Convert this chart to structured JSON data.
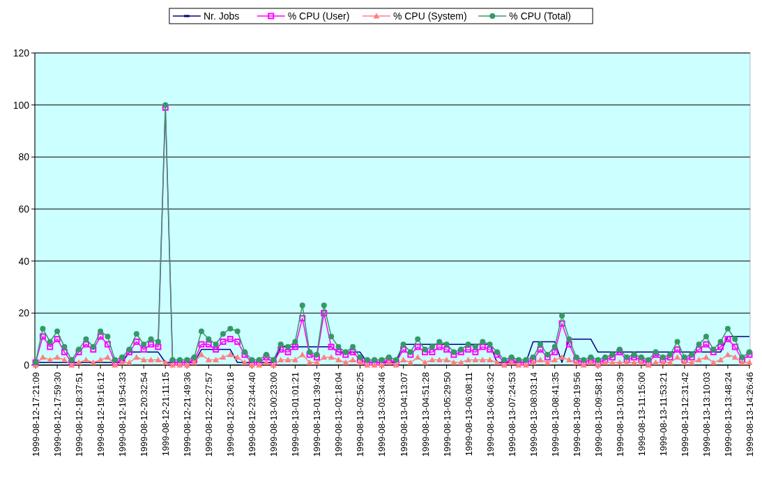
{
  "chart_data": {
    "type": "line",
    "categories": [
      "1999-08-12-17:21:09",
      null,
      null,
      "1999-08-12-17:59:30",
      null,
      null,
      "1999-08-12-18:37:51",
      null,
      null,
      "1999-08-12-19:16:12",
      null,
      null,
      "1999-08-12-19:54:33",
      null,
      null,
      "1999-08-12-20:32:54",
      null,
      null,
      "1999-08-12-21:11:15",
      null,
      null,
      "1999-08-12-21:49:36",
      null,
      null,
      "1999-08-12-22:27:57",
      null,
      null,
      "1999-08-12-23:06:18",
      null,
      null,
      "1999-08-12-23:44:40",
      null,
      null,
      "1999-08-13-00:23:00",
      null,
      null,
      "1999-08-13-01:01:21",
      null,
      null,
      "1999-08-13-01:39:43",
      null,
      null,
      "1999-08-13-02:18:04",
      null,
      null,
      "1999-08-13-02:56:25",
      null,
      null,
      "1999-08-13-03:34:46",
      null,
      null,
      "1999-08-13-04:13:07",
      null,
      null,
      "1999-08-13-04:51:28",
      null,
      null,
      "1999-08-13-05:29:50",
      null,
      null,
      "1999-08-13-06:08:11",
      null,
      null,
      "1999-08-13-06:46:32",
      null,
      null,
      "1999-08-13-07:24:53",
      null,
      null,
      "1999-08-13-08:03:14",
      null,
      null,
      "1999-08-13-08:41:35",
      null,
      null,
      "1999-08-13-09:19:56",
      null,
      null,
      "1999-08-13-09:58:18",
      null,
      null,
      "1999-08-13-10:36:39",
      null,
      null,
      "1999-08-13-11:15:00",
      null,
      null,
      "1999-08-13-11:53:21",
      null,
      null,
      "1999-08-13-12:31:42",
      null,
      null,
      "1999-08-13-13:10:03",
      null,
      null,
      "1999-08-13-13:48:24",
      null,
      null,
      "1999-08-13-14:26:46"
    ],
    "series": [
      {
        "name": "Nr. Jobs",
        "color": "#000080",
        "values": [
          1,
          1,
          1,
          1,
          1,
          1,
          1,
          1,
          1,
          1,
          1,
          1,
          1,
          5,
          5,
          5,
          5,
          5,
          1,
          1,
          1,
          1,
          1,
          6,
          6,
          6,
          6,
          6,
          1,
          1,
          1,
          1,
          1,
          1,
          7,
          7,
          7,
          7,
          7,
          7,
          7,
          7,
          5,
          5,
          5,
          5,
          1,
          1,
          1,
          1,
          1,
          8,
          8,
          8,
          8,
          8,
          8,
          8,
          8,
          8,
          8,
          8,
          8,
          8,
          1,
          1,
          1,
          1,
          1,
          9,
          9,
          9,
          9,
          1,
          10,
          10,
          10,
          10,
          5,
          5,
          5,
          5,
          5,
          5,
          5,
          5,
          5,
          5,
          5,
          5,
          5,
          5,
          5,
          5,
          5,
          5,
          11,
          11,
          11,
          11
        ]
      },
      {
        "name": "% CPU (User)",
        "color": "#ff00ff",
        "marker": "square",
        "values": [
          1,
          11,
          7,
          10,
          5,
          1,
          5,
          8,
          6,
          11,
          8,
          1,
          2,
          5,
          9,
          6,
          8,
          7,
          99,
          1,
          1,
          1,
          2,
          8,
          8,
          6,
          9,
          10,
          9,
          4,
          1,
          1,
          3,
          1,
          6,
          5,
          7,
          18,
          4,
          3,
          20,
          7,
          5,
          4,
          5,
          2,
          1,
          1,
          1,
          2,
          1,
          6,
          4,
          7,
          5,
          5,
          7,
          6,
          4,
          5,
          6,
          5,
          7,
          6,
          4,
          1,
          2,
          1,
          1,
          2,
          6,
          3,
          5,
          16,
          8,
          2,
          1,
          2,
          1,
          2,
          3,
          5,
          2,
          3,
          2,
          1,
          4,
          2,
          3,
          6,
          2,
          3,
          6,
          8,
          5,
          7,
          10,
          7,
          2,
          4
        ]
      },
      {
        "name": "% CPU (System)",
        "color": "#ff8080",
        "marker": "triangle",
        "values": [
          0,
          3,
          2,
          3,
          2,
          0,
          1,
          2,
          1,
          2,
          3,
          0,
          1,
          1,
          3,
          2,
          2,
          2,
          1,
          0,
          0,
          0,
          1,
          4,
          2,
          2,
          3,
          4,
          3,
          1,
          0,
          0,
          1,
          0,
          2,
          2,
          2,
          4,
          1,
          1,
          3,
          3,
          2,
          1,
          2,
          1,
          0,
          0,
          0,
          1,
          0,
          2,
          1,
          3,
          1,
          2,
          2,
          2,
          1,
          1,
          2,
          2,
          2,
          2,
          1,
          0,
          1,
          0,
          0,
          1,
          2,
          1,
          2,
          3,
          2,
          1,
          0,
          1,
          0,
          1,
          1,
          1,
          1,
          1,
          1,
          0,
          1,
          1,
          1,
          3,
          1,
          1,
          2,
          3,
          1,
          2,
          4,
          3,
          1,
          1
        ]
      },
      {
        "name": "% CPU (Total)",
        "color": "#339966",
        "marker": "circle",
        "values": [
          1,
          14,
          9,
          13,
          7,
          2,
          6,
          10,
          7,
          13,
          11,
          2,
          3,
          6,
          12,
          8,
          10,
          9,
          100,
          2,
          2,
          2,
          3,
          13,
          10,
          8,
          12,
          14,
          13,
          5,
          2,
          2,
          4,
          2,
          8,
          7,
          9,
          23,
          5,
          4,
          23,
          11,
          7,
          5,
          7,
          3,
          2,
          2,
          2,
          3,
          2,
          8,
          5,
          10,
          6,
          7,
          9,
          8,
          5,
          6,
          8,
          7,
          9,
          8,
          5,
          2,
          3,
          2,
          2,
          3,
          8,
          4,
          7,
          19,
          10,
          3,
          2,
          3,
          2,
          3,
          4,
          6,
          3,
          4,
          3,
          2,
          5,
          3,
          4,
          9,
          3,
          4,
          8,
          11,
          6,
          9,
          14,
          10,
          3,
          5
        ]
      }
    ],
    "ylim": [
      0,
      120
    ],
    "yticks": [
      0,
      20,
      40,
      60,
      80,
      100,
      120
    ],
    "grid": "y",
    "legend": "top"
  }
}
